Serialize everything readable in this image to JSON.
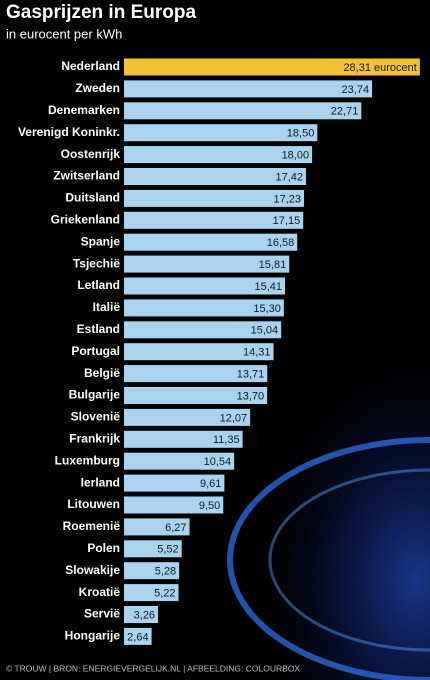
{
  "chart_data": {
    "type": "bar",
    "orientation": "horizontal",
    "title": "Gasprijzen in Europa",
    "subtitle": "in eurocent per kWh",
    "categories": [
      "Nederland",
      "Zweden",
      "Denemarken",
      "Verenigd Koninkr.",
      "Oostenrijk",
      "Zwitserland",
      "Duitsland",
      "Griekenland",
      "Spanje",
      "Tsjechië",
      "Letland",
      "Italië",
      "Estland",
      "Portugal",
      "België",
      "Bulgarije",
      "Slovenië",
      "Frankrijk",
      "Luxemburg",
      "Ierland",
      "Litouwen",
      "Roemenië",
      "Polen",
      "Slowakije",
      "Kroatië",
      "Servië",
      "Hongarije"
    ],
    "values": [
      28.31,
      23.74,
      22.71,
      18.5,
      18.0,
      17.42,
      17.23,
      17.15,
      16.58,
      15.81,
      15.41,
      15.3,
      15.04,
      14.31,
      13.71,
      13.7,
      12.07,
      11.35,
      10.54,
      9.61,
      9.5,
      6.27,
      5.52,
      5.28,
      5.22,
      3.26,
      2.64
    ],
    "value_labels": [
      "28,31 eurocent",
      "23,74",
      "22,71",
      "18,50",
      "18,00",
      "17,42",
      "17,23",
      "17,15",
      "16,58",
      "15,81",
      "15,41",
      "15,30",
      "15,04",
      "14,31",
      "13,71",
      "13,70",
      "12,07",
      "11,35",
      "10,54",
      "9,61",
      "9,50",
      "6,27",
      "5,52",
      "5,28",
      "5,22",
      "3,26",
      "2,64"
    ],
    "colors": [
      "#f3c335",
      "#a9d3ef",
      "#a9d3ef",
      "#a9d3ef",
      "#a9d3ef",
      "#a9d3ef",
      "#a9d3ef",
      "#a9d3ef",
      "#a9d3ef",
      "#a9d3ef",
      "#a9d3ef",
      "#a9d3ef",
      "#a9d3ef",
      "#a9d3ef",
      "#a9d3ef",
      "#a9d3ef",
      "#a9d3ef",
      "#a9d3ef",
      "#a9d3ef",
      "#a9d3ef",
      "#a9d3ef",
      "#a9d3ef",
      "#a9d3ef",
      "#a9d3ef",
      "#a9d3ef",
      "#a9d3ef",
      "#a9d3ef"
    ],
    "source": "© TROUW | BRON: ENERGIEVERGELIJK.NL | AFBEELDING: COLOURBOX"
  }
}
